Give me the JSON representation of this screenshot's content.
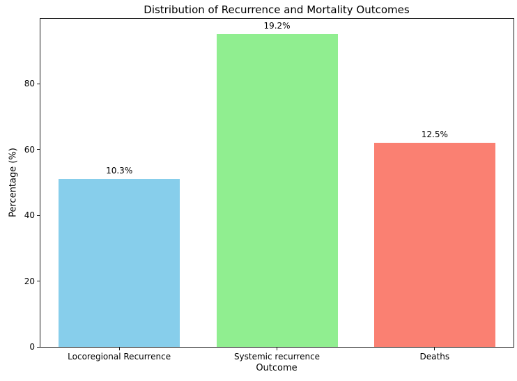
{
  "chart_data": {
    "type": "bar",
    "title": "Distribution of Recurrence and Mortality Outcomes",
    "xlabel": "Outcome",
    "ylabel": "Percentage (%)",
    "categories": [
      "Locoregional Recurrence",
      "Systemic recurrence",
      "Deaths"
    ],
    "values": [
      51,
      95,
      62
    ],
    "bar_labels": [
      "10.3%",
      "19.2%",
      "12.5%"
    ],
    "bar_colors": [
      "#87CEEB",
      "#90EE90",
      "#FA8072"
    ],
    "ylim": [
      0,
      99.75
    ],
    "yticks": [
      0,
      20,
      40,
      60,
      80
    ],
    "grid": false,
    "legend_position": "none",
    "background_color": "#ffffff",
    "axis_color": "#1a1a1a"
  }
}
